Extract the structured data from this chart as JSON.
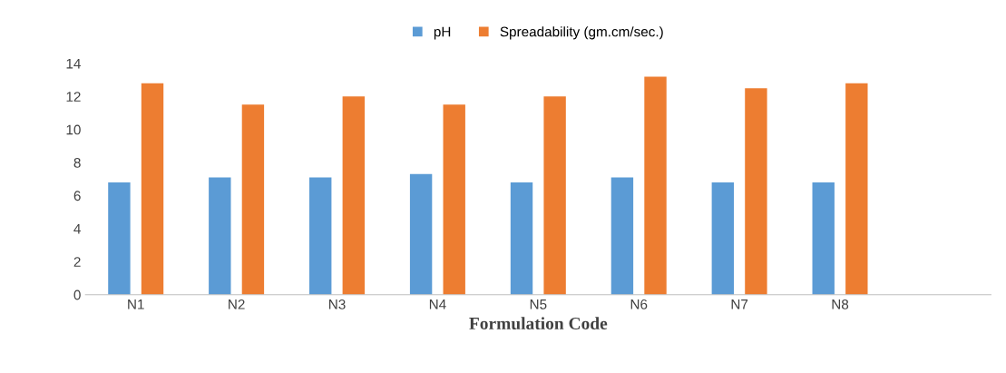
{
  "chart_data": {
    "type": "bar",
    "xlabel": "Formulation Code",
    "categories": [
      "N1",
      "N2",
      "N3",
      "N4",
      "N5",
      "N6",
      "N7",
      "N8",
      null
    ],
    "series": [
      {
        "name": "pH",
        "color": "#5b9bd5",
        "values": [
          6.8,
          7.1,
          7.1,
          7.3,
          6.8,
          7.1,
          6.8,
          6.8,
          null
        ]
      },
      {
        "name": "Spreadability (gm.cm/sec.)",
        "color": "#ed7d31",
        "values": [
          12.8,
          11.5,
          12.0,
          11.5,
          12.0,
          13.2,
          12.5,
          12.8,
          null
        ]
      }
    ],
    "ylim": [
      0,
      14
    ],
    "yticks": [
      0,
      2,
      4,
      6,
      8,
      10,
      12,
      14
    ],
    "grid": false,
    "legend": "top"
  }
}
